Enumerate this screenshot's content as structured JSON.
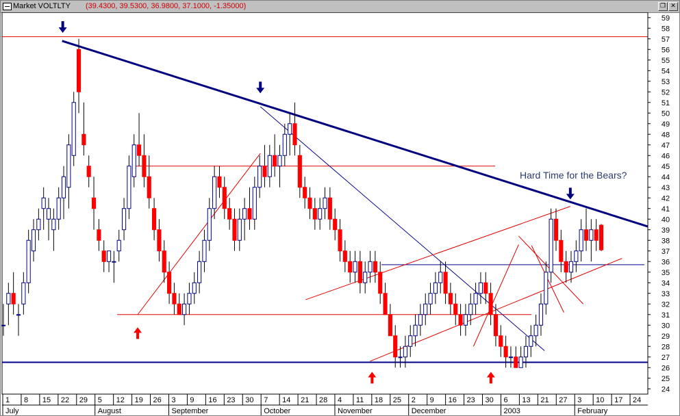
{
  "window": {
    "title_name": "Market VOLTLTY",
    "title_values": "(39.4300, 39.5300, 36.9800, 37.1000, -1.35000)",
    "restore_glyph": "❐",
    "close_glyph": "✕"
  },
  "colors": {
    "up_body": "#ffffff",
    "down_body": "#ff0000",
    "wick": "#000000",
    "main_trendline": "#000080",
    "thin_blue": "#00008b",
    "red_lines": "#e00000",
    "arrow_top": "#000080",
    "arrow_bottom": "#ff0000",
    "background": "#ffffff"
  },
  "chart_data": {
    "type": "candlestick",
    "title": "Market VOLTLTY",
    "annotation": "Hard Time for the Bears?",
    "y_axis": {
      "min": 24,
      "max": 59.5,
      "position": "right",
      "ticks": [
        24,
        25,
        26,
        27,
        28,
        29,
        30,
        31,
        32,
        33,
        34,
        35,
        36,
        37,
        38,
        39,
        40,
        41,
        42,
        43,
        44,
        45,
        46,
        47,
        48,
        49,
        50,
        51,
        52,
        53,
        54,
        55,
        56,
        57,
        58,
        59
      ]
    },
    "x_axis": {
      "day_labels": [
        "1",
        "8",
        "15",
        "22",
        "29",
        "5",
        "12",
        "19",
        "26",
        "3",
        "9",
        "16",
        "23",
        "30",
        "7",
        "14",
        "21",
        "28",
        "4",
        "11",
        "18",
        "25",
        "2",
        "9",
        "16",
        "23",
        "30",
        "6",
        "13",
        "21",
        "27",
        "3",
        "10",
        "17",
        "24"
      ],
      "month_labels": [
        "July",
        "August",
        "September",
        "October",
        "November",
        "December",
        "2003",
        "February"
      ],
      "month_label_day_index": [
        0,
        5,
        9,
        14,
        18,
        22,
        27,
        31
      ]
    },
    "series": {
      "ohlc": [
        [
          30,
          32,
          29,
          30
        ],
        [
          32,
          34,
          30,
          33
        ],
        [
          33,
          35,
          31,
          32
        ],
        [
          31,
          32,
          29,
          31
        ],
        [
          32,
          35,
          31,
          34
        ],
        [
          34,
          39,
          33,
          38
        ],
        [
          37,
          40,
          36,
          39
        ],
        [
          39,
          41,
          38,
          40
        ],
        [
          41,
          43,
          39,
          42
        ],
        [
          40,
          42,
          38,
          41
        ],
        [
          39,
          41,
          37,
          40
        ],
        [
          40,
          43,
          39,
          42
        ],
        [
          42,
          45,
          40,
          44
        ],
        [
          43,
          48,
          41,
          47
        ],
        [
          46,
          52,
          45,
          51
        ],
        [
          56,
          57,
          50,
          52
        ],
        [
          48,
          51,
          46,
          47
        ],
        [
          45,
          46,
          43,
          44
        ],
        [
          42,
          44,
          39,
          41
        ],
        [
          39,
          40,
          37,
          38
        ],
        [
          37,
          38,
          35,
          36
        ],
        [
          36,
          37,
          35,
          37
        ],
        [
          36,
          37,
          34,
          36
        ],
        [
          37,
          39,
          36,
          38
        ],
        [
          39,
          42,
          38,
          41
        ],
        [
          41,
          46,
          40,
          45
        ],
        [
          44,
          48,
          43,
          47
        ],
        [
          47,
          50,
          45,
          46
        ],
        [
          46,
          48,
          43,
          44
        ],
        [
          44,
          46,
          41,
          42
        ],
        [
          41,
          42,
          38,
          39
        ],
        [
          39,
          40,
          36,
          37
        ],
        [
          37,
          38,
          34,
          35
        ],
        [
          35,
          36,
          32,
          33
        ],
        [
          33,
          34,
          31,
          32
        ],
        [
          32,
          33,
          31,
          31
        ],
        [
          31,
          33,
          30,
          32
        ],
        [
          32,
          34,
          31,
          33
        ],
        [
          33,
          35,
          32,
          34
        ],
        [
          34,
          37,
          33,
          36
        ],
        [
          36,
          39,
          35,
          38
        ],
        [
          38,
          42,
          37,
          41
        ],
        [
          41,
          45,
          40,
          44
        ],
        [
          44,
          45,
          42,
          43
        ],
        [
          43,
          44,
          40,
          41
        ],
        [
          41,
          42,
          39,
          40
        ],
        [
          40,
          41,
          37,
          38
        ],
        [
          38,
          41,
          37,
          40
        ],
        [
          40,
          42,
          38,
          41
        ],
        [
          41,
          43,
          39,
          40
        ],
        [
          40,
          44,
          39,
          43
        ],
        [
          43,
          46,
          42,
          45
        ],
        [
          45,
          47,
          43,
          44
        ],
        [
          44,
          47,
          43,
          46
        ],
        [
          46,
          48,
          44,
          45
        ],
        [
          45,
          47,
          43,
          46
        ],
        [
          46,
          49,
          45,
          48
        ],
        [
          48,
          50,
          46,
          49
        ],
        [
          49,
          51,
          46,
          47
        ],
        [
          46,
          47,
          42,
          43
        ],
        [
          43,
          44,
          41,
          42
        ],
        [
          42,
          43,
          40,
          41
        ],
        [
          41,
          42,
          39,
          40
        ],
        [
          40,
          42,
          39,
          41
        ],
        [
          41,
          43,
          40,
          42
        ],
        [
          42,
          43,
          39,
          40
        ],
        [
          40,
          41,
          38,
          39
        ],
        [
          39,
          40,
          36,
          37
        ],
        [
          37,
          38,
          35,
          36
        ],
        [
          36,
          37,
          34,
          35
        ],
        [
          35,
          37,
          34,
          36
        ],
        [
          36,
          37,
          33,
          34
        ],
        [
          34,
          36,
          33,
          35
        ],
        [
          35,
          37,
          34,
          36
        ],
        [
          36,
          37,
          34,
          35
        ],
        [
          35,
          36,
          32,
          33
        ],
        [
          33,
          34,
          31,
          31
        ],
        [
          31,
          32,
          29,
          29
        ],
        [
          29,
          30,
          26,
          27
        ],
        [
          27,
          28,
          26,
          27
        ],
        [
          27,
          29,
          26,
          28
        ],
        [
          28,
          30,
          27,
          29
        ],
        [
          29,
          31,
          28,
          30
        ],
        [
          30,
          32,
          29,
          31
        ],
        [
          31,
          33,
          30,
          32
        ],
        [
          32,
          34,
          31,
          33
        ],
        [
          33,
          35,
          32,
          34
        ],
        [
          34,
          36,
          33,
          35
        ],
        [
          35,
          36,
          32,
          33
        ],
        [
          33,
          34,
          31,
          32
        ],
        [
          32,
          33,
          30,
          31
        ],
        [
          31,
          32,
          29,
          30
        ],
        [
          30,
          32,
          29,
          31
        ],
        [
          31,
          33,
          30,
          32
        ],
        [
          32,
          34,
          31,
          33
        ],
        [
          33,
          35,
          32,
          34
        ],
        [
          34,
          35,
          32,
          33
        ],
        [
          33,
          34,
          30,
          31
        ],
        [
          31,
          32,
          28,
          29
        ],
        [
          29,
          30,
          27,
          28
        ],
        [
          28,
          29,
          26,
          27
        ],
        [
          27,
          28,
          26,
          27
        ],
        [
          27,
          28,
          26,
          26
        ],
        [
          26,
          28,
          26,
          27
        ],
        [
          27,
          29,
          26,
          28
        ],
        [
          28,
          30,
          27,
          29
        ],
        [
          29,
          31,
          28,
          30
        ],
        [
          30,
          33,
          29,
          32
        ],
        [
          32,
          36,
          31,
          35
        ],
        [
          35,
          41,
          34,
          40
        ],
        [
          40,
          41,
          37,
          38
        ],
        [
          38,
          39,
          35,
          36
        ],
        [
          36,
          37,
          34,
          35
        ],
        [
          35,
          37,
          34,
          36
        ],
        [
          36,
          38,
          35,
          37
        ],
        [
          37,
          40,
          36,
          39
        ],
        [
          39,
          41,
          37,
          38
        ],
        [
          38,
          40,
          36,
          39
        ],
        [
          39,
          40,
          37,
          38
        ],
        [
          39.43,
          39.53,
          36.98,
          37.1
        ]
      ]
    },
    "horizontal_lines": [
      {
        "y": 57.2,
        "color": "red"
      },
      {
        "y": 45.0,
        "color": "red"
      },
      {
        "y": 31.0,
        "color": "red"
      },
      {
        "y": 35.7,
        "color": "navy"
      },
      {
        "y": 26.5,
        "color": "navy"
      }
    ],
    "trendlines": [
      {
        "from": [
          0.093,
          56.8
        ],
        "to": [
          1.0,
          39.3
        ],
        "color": "navy",
        "weight": "thick"
      },
      {
        "from": [
          0.4,
          50.6
        ],
        "to": [
          0.84,
          27.6
        ],
        "color": "navy",
        "weight": "thin"
      },
      {
        "from": [
          0.21,
          31.0
        ],
        "to": [
          0.4,
          46.2
        ],
        "color": "red"
      },
      {
        "from": [
          0.47,
          32.4
        ],
        "to": [
          0.88,
          41.2
        ],
        "color": "red"
      },
      {
        "from": [
          0.57,
          26.6
        ],
        "to": [
          0.96,
          36.3
        ],
        "color": "red"
      },
      {
        "from": [
          0.73,
          28.0
        ],
        "to": [
          0.8,
          37.6
        ],
        "color": "red"
      },
      {
        "from": [
          0.82,
          37.5
        ],
        "to": [
          0.87,
          31.2
        ],
        "color": "red"
      },
      {
        "from": [
          0.8,
          38.4
        ],
        "to": [
          0.9,
          32.0
        ],
        "color": "red"
      }
    ],
    "markers": [
      {
        "type": "arrow-down",
        "near_x": 0.094,
        "near_y": 57.5
      },
      {
        "type": "arrow-down",
        "near_x": 0.4,
        "near_y": 51.8
      },
      {
        "type": "arrow-down",
        "near_x": 0.88,
        "near_y": 41.8
      },
      {
        "type": "arrow-up",
        "near_x": 0.21,
        "near_y": 29.8
      },
      {
        "type": "arrow-up",
        "near_x": 0.573,
        "near_y": 25.6
      },
      {
        "type": "arrow-up",
        "near_x": 0.757,
        "near_y": 25.6
      }
    ]
  }
}
